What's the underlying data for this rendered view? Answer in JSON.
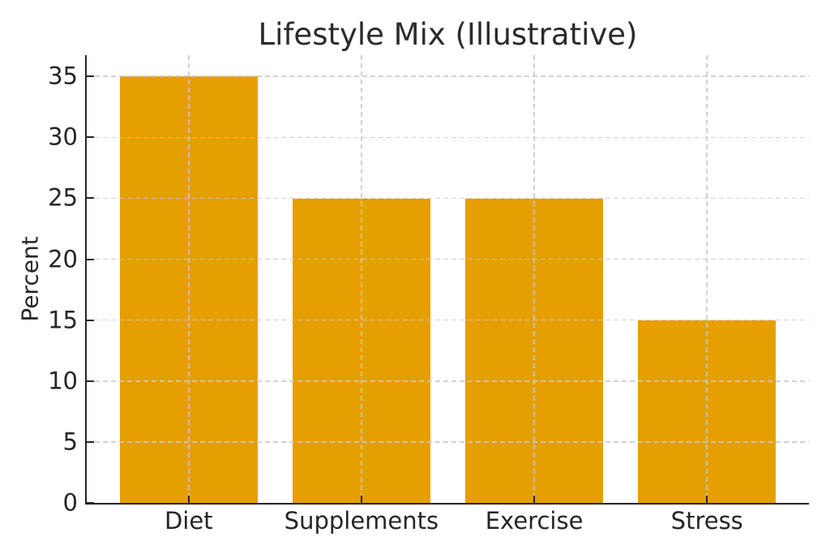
{
  "chart_data": {
    "type": "bar",
    "title": "Lifestyle Mix (Illustrative)",
    "xlabel": "",
    "ylabel": "Percent",
    "categories": [
      "Diet",
      "Supplements",
      "Exercise",
      "Stress"
    ],
    "values": [
      35,
      25,
      25,
      15
    ],
    "yticks": [
      0,
      5,
      10,
      15,
      20,
      25,
      30,
      35
    ],
    "ylim": [
      0,
      36.75
    ],
    "grid": true,
    "grid_style": "dashed",
    "grid_axes": "both",
    "legend_position": "none",
    "colors": {
      "bar": "#E69F00",
      "grid": "#c9c9c9",
      "axis": "#262626",
      "text": "#2b2b2b",
      "background": "#ffffff"
    }
  }
}
